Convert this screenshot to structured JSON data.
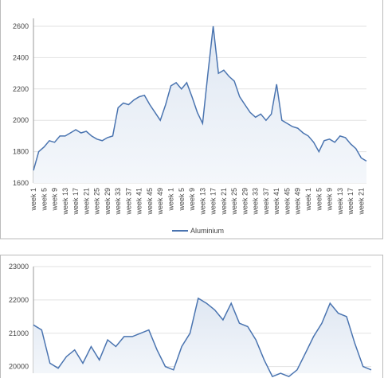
{
  "chart_data": [
    {
      "type": "line",
      "ylim": [
        1600,
        2650
      ],
      "yticks": [
        1600,
        1800,
        2000,
        2200,
        2400,
        2600
      ],
      "grid": true,
      "legend": "bottom",
      "area": true,
      "categories": [
        "week 1",
        null,
        "week 5",
        null,
        "week 9",
        null,
        "week 13",
        null,
        "week 17",
        null,
        "week 21",
        null,
        "week 25",
        null,
        "week 29",
        null,
        "week 33",
        null,
        "week 37",
        null,
        "week 41",
        null,
        "week 45",
        null,
        "week 49",
        null,
        "week 1",
        null,
        "week 5",
        null,
        "week 9",
        null,
        "week 13",
        null,
        "week 17",
        null,
        "week 21",
        null,
        "week 25",
        null,
        "week 29",
        null,
        "week 33",
        null,
        "week 37",
        null,
        "week 41",
        null,
        "week 45",
        null,
        "week 49",
        null,
        "week 1",
        null,
        "week 5",
        null,
        "week 9",
        null,
        "week 13",
        null,
        "week 17",
        null,
        "week 21",
        null
      ],
      "series": [
        {
          "name": "Aluminium",
          "color": "#4a74b0",
          "values": [
            1680,
            1800,
            1830,
            1870,
            1860,
            1900,
            1900,
            1920,
            1940,
            1920,
            1930,
            1900,
            1880,
            1870,
            1890,
            1900,
            2080,
            2110,
            2100,
            2130,
            2150,
            2160,
            2100,
            2050,
            2000,
            2100,
            2220,
            2240,
            2200,
            2240,
            2150,
            2050,
            1980,
            2300,
            2600,
            2300,
            2320,
            2280,
            2250,
            2150,
            2100,
            2050,
            2020,
            2040,
            2000,
            2040,
            2230,
            2000,
            1980,
            1960,
            1950,
            1920,
            1900,
            1860,
            1800,
            1870,
            1880,
            1860,
            1900,
            1890,
            1850,
            1820,
            1760,
            1740
          ]
        }
      ]
    },
    {
      "type": "line",
      "ylim": [
        19800,
        23000
      ],
      "yticks": [
        20000,
        21000,
        22000,
        23000
      ],
      "grid": true,
      "area": true,
      "series": [
        {
          "color": "#4a74b0",
          "values": [
            21250,
            21100,
            20100,
            19950,
            20300,
            20500,
            20100,
            20600,
            20200,
            20800,
            20600,
            20900,
            20900,
            21000,
            21100,
            20500,
            20000,
            19900,
            20600,
            21000,
            22050,
            21900,
            21700,
            21400,
            21900,
            21300,
            21200,
            20800,
            20200,
            19700,
            19800,
            19700,
            19900,
            20400,
            20900,
            21300,
            21900,
            21600,
            21500,
            20700,
            20000,
            19900
          ]
        }
      ]
    }
  ]
}
